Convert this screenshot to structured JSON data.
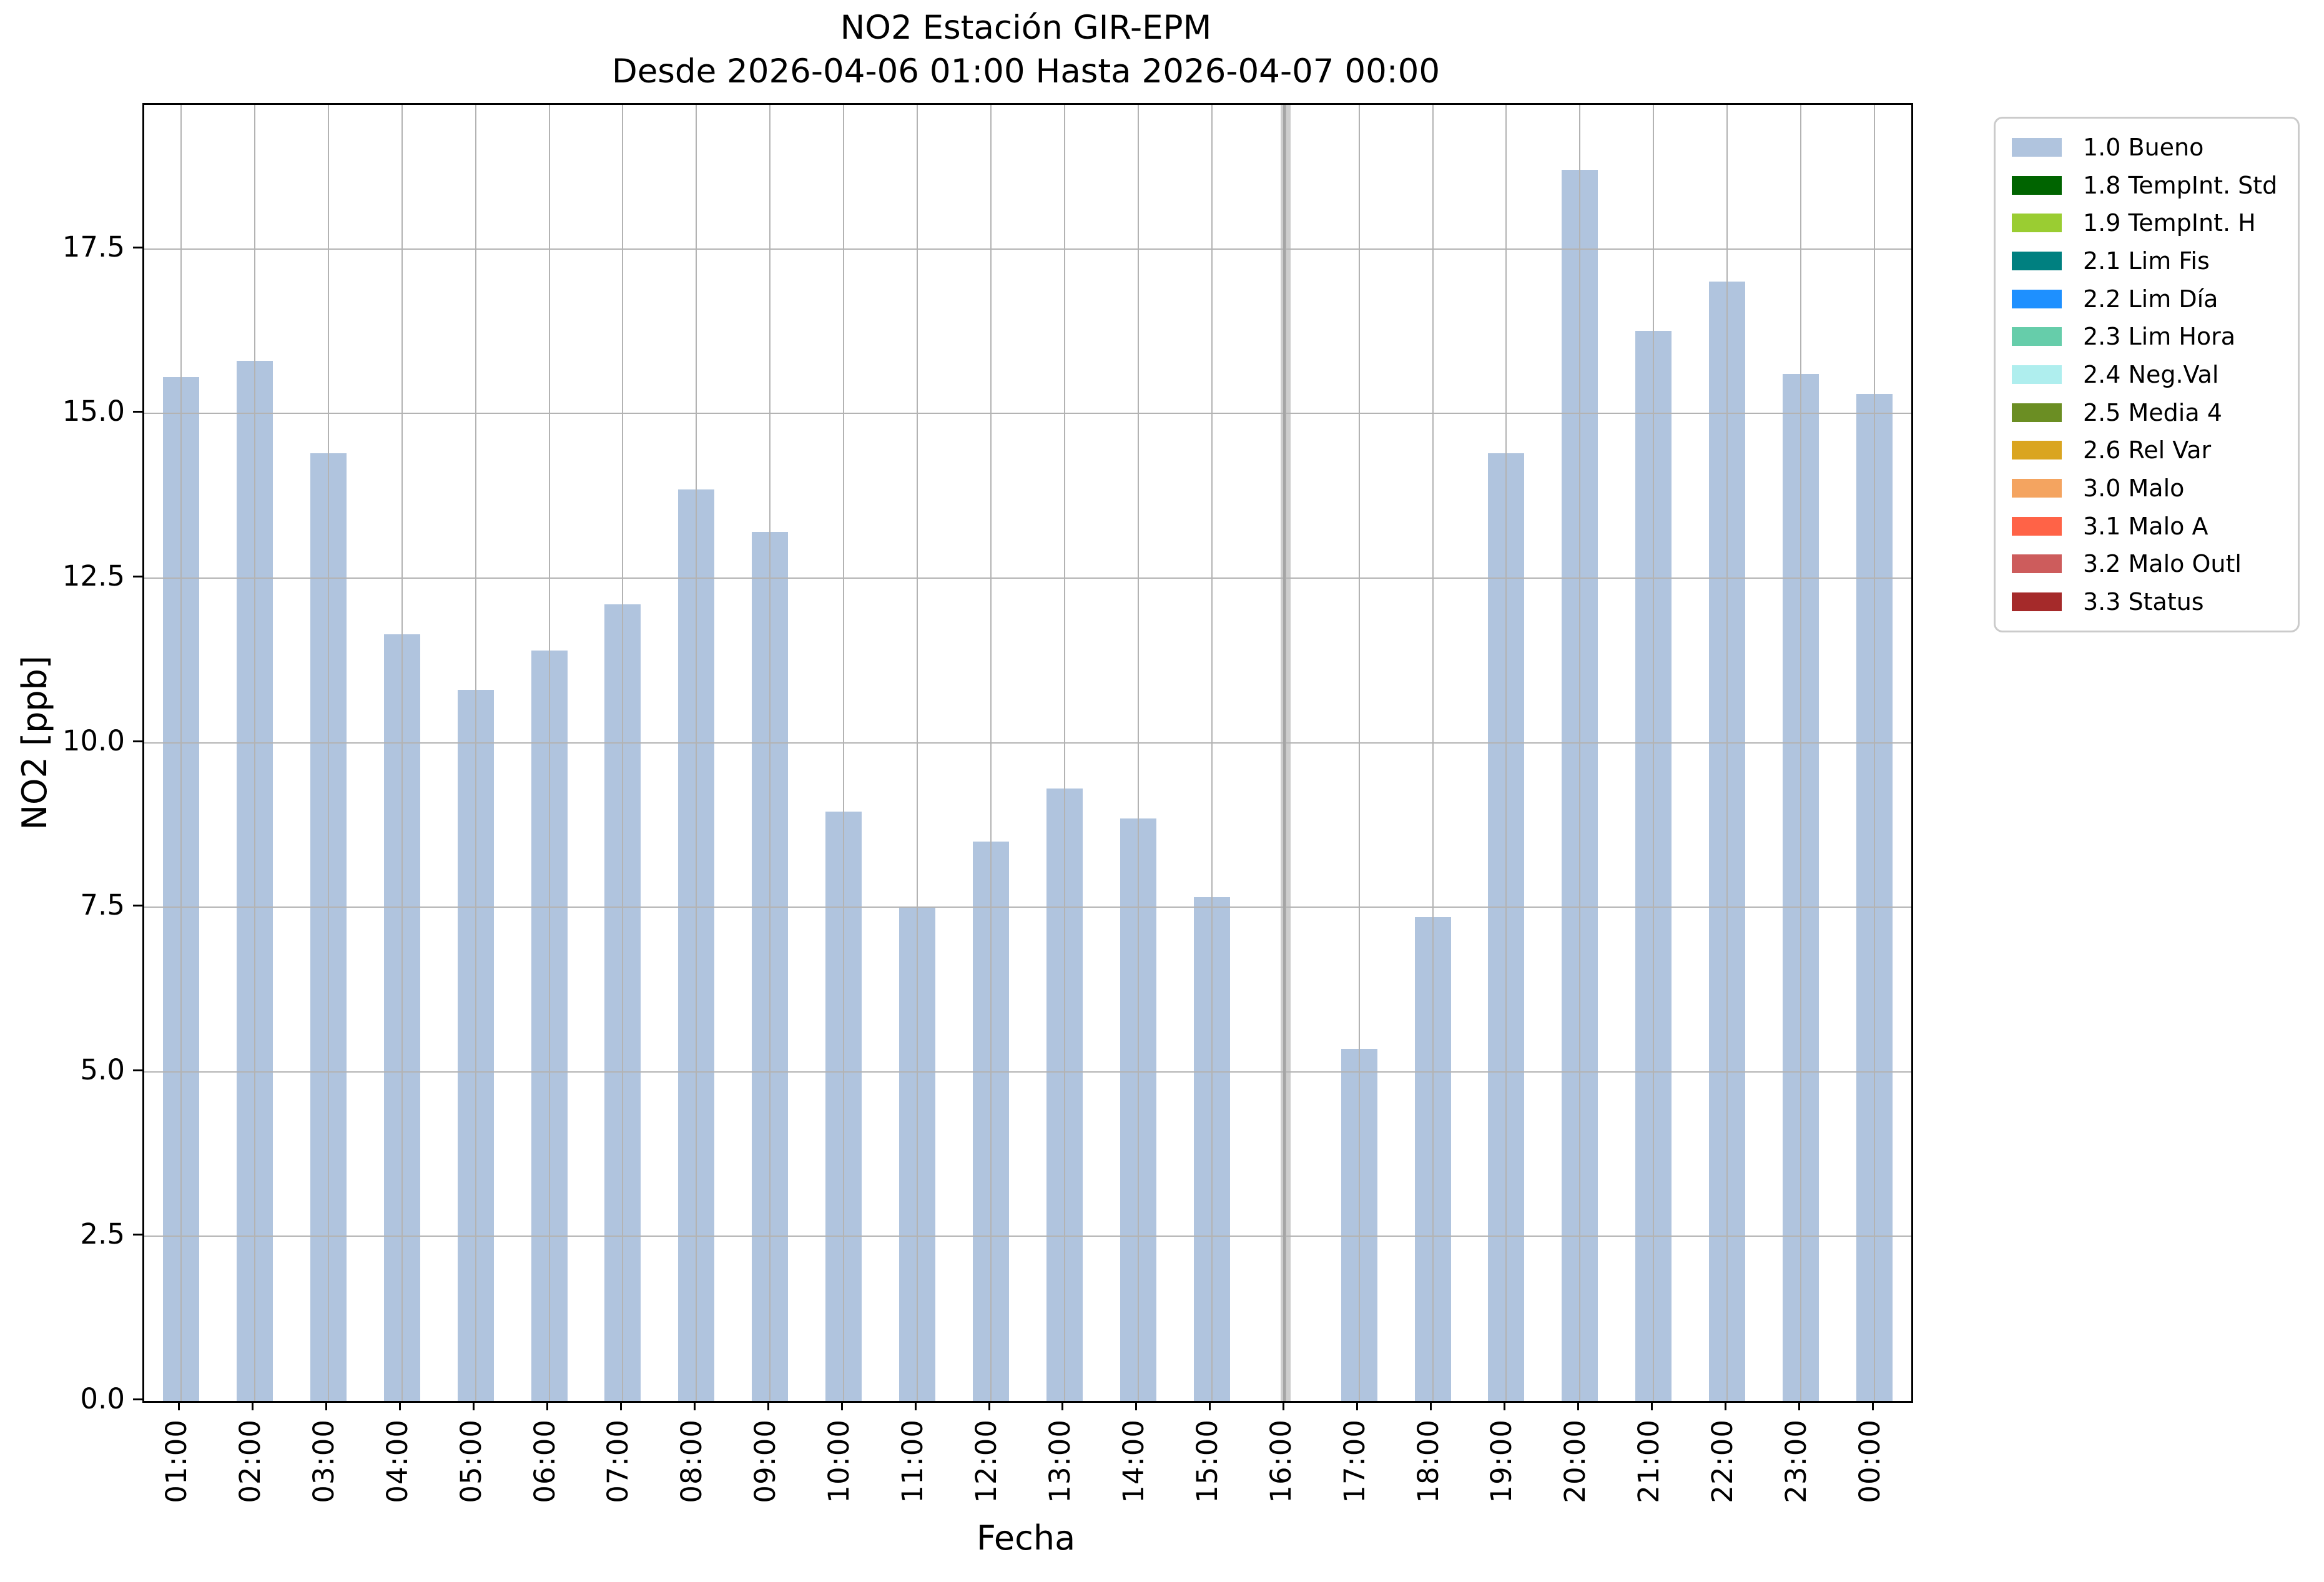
{
  "figure": {
    "title": "NO2 Estación GIR-EPM",
    "subtitle": "Desde 2026-04-06 01:00 Hasta 2026-04-07 00:00",
    "ylabel": "NO2 [ppb]",
    "xlabel": "Fecha"
  },
  "chart_data": {
    "type": "bar",
    "title": "NO2 Estación GIR-EPM",
    "subtitle": "Desde 2026-04-06 01:00 Hasta 2026-04-07 00:00",
    "xlabel": "Fecha",
    "ylabel": "NO2 [ppb]",
    "categories": [
      "01:00",
      "02:00",
      "03:00",
      "04:00",
      "05:00",
      "06:00",
      "07:00",
      "08:00",
      "09:00",
      "10:00",
      "11:00",
      "12:00",
      "13:00",
      "14:00",
      "15:00",
      "16:00",
      "17:00",
      "18:00",
      "19:00",
      "20:00",
      "21:00",
      "22:00",
      "23:00",
      "00:00"
    ],
    "series": [
      {
        "name": "1.0 Bueno",
        "color": "#b0c4de",
        "values": [
          15.55,
          15.8,
          14.4,
          11.65,
          10.8,
          11.4,
          12.1,
          13.85,
          13.2,
          8.95,
          7.5,
          8.5,
          9.3,
          8.85,
          7.65,
          null,
          5.35,
          7.35,
          14.4,
          18.7,
          16.25,
          17.0,
          15.6,
          15.3
        ]
      }
    ],
    "missing_categories": [
      "16:00"
    ],
    "ylim": [
      0,
      19.6875
    ],
    "yticks": [
      0.0,
      2.5,
      5.0,
      7.5,
      10.0,
      12.5,
      15.0,
      17.5
    ],
    "ytick_labels": [
      "0.0",
      "2.5",
      "5.0",
      "7.5",
      "10.0",
      "12.5",
      "15.0",
      "17.5"
    ],
    "grid": true,
    "legend_position": "outside-upper-right"
  },
  "legend": {
    "items": [
      {
        "label": "1.0 Bueno",
        "color": "#b0c4de"
      },
      {
        "label": "1.8 TempInt. Std",
        "color": "#006400"
      },
      {
        "label": "1.9 TempInt. H",
        "color": "#9acd32"
      },
      {
        "label": "2.1 Lim Fis",
        "color": "#008080"
      },
      {
        "label": "2.2 Lim Día",
        "color": "#1e90ff"
      },
      {
        "label": "2.3 Lim Hora",
        "color": "#66cdaa"
      },
      {
        "label": "2.4 Neg.Val",
        "color": "#afeeee"
      },
      {
        "label": "2.5 Media 4",
        "color": "#6b8e23"
      },
      {
        "label": "2.6 Rel Var",
        "color": "#daa520"
      },
      {
        "label": "3.0 Malo",
        "color": "#f4a460"
      },
      {
        "label": "3.1 Malo A",
        "color": "#ff6347"
      },
      {
        "label": "3.2 Malo Outl",
        "color": "#cd5c5c"
      },
      {
        "label": "3.3 Status",
        "color": "#a52a2a"
      }
    ]
  },
  "style": {
    "bar_color": "#b0c4de",
    "grid_color": "#b3b3b3",
    "missing_band_color": "#cdcdcd",
    "missing_band_core_color": "#a5a5a5",
    "spine_color": "#000000",
    "legend_border_color": "#cbcbcb",
    "background": "#ffffff"
  }
}
